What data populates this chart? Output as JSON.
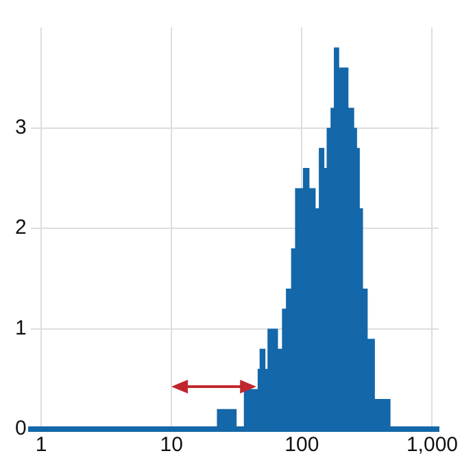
{
  "chart_data": {
    "type": "histogram",
    "color": "#1467a8",
    "bins": [
      22.3,
      31.2,
      35.9,
      45.8,
      47.4,
      51.9,
      54.5,
      64.8,
      70.4,
      75.5,
      82.7,
      88.7,
      102,
      113,
      126,
      135,
      147,
      155,
      166,
      176,
      191,
      225,
      249,
      262,
      275,
      291,
      316,
      359,
      473
    ],
    "values": [
      0.2,
      0,
      0.4,
      0.6,
      0.8,
      0.6,
      1.0,
      0.8,
      1.2,
      1.4,
      1.8,
      2.4,
      2.6,
      2.4,
      2.2,
      2.8,
      2.6,
      3.0,
      3.2,
      3.8,
      3.6,
      3.2,
      3.0,
      2.8,
      2.2,
      1.4,
      0.9,
      0.3
    ],
    "log": "x",
    "xlim": [
      0.83,
      1120
    ],
    "xticks": [
      1,
      10,
      100,
      {
        "value": 1000,
        "label": "1,000"
      }
    ],
    "ylim": [
      0,
      4
    ],
    "yticks": [
      0,
      1,
      2,
      3
    ],
    "grid": true
  }
}
